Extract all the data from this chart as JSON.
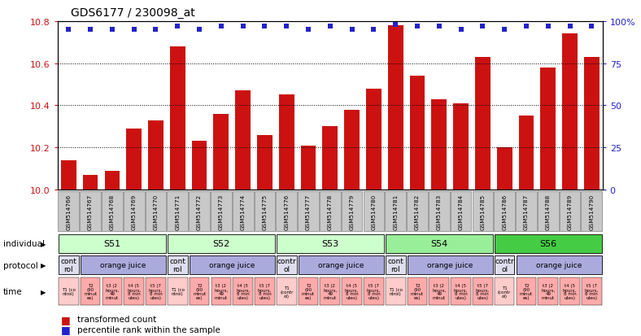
{
  "title": "GDS6177 / 230098_at",
  "samples": [
    "GSM514766",
    "GSM514767",
    "GSM514768",
    "GSM514769",
    "GSM514770",
    "GSM514771",
    "GSM514772",
    "GSM514773",
    "GSM514774",
    "GSM514775",
    "GSM514776",
    "GSM514777",
    "GSM514778",
    "GSM514779",
    "GSM514780",
    "GSM514781",
    "GSM514782",
    "GSM514783",
    "GSM514784",
    "GSM514785",
    "GSM514786",
    "GSM514787",
    "GSM514788",
    "GSM514789",
    "GSM514790"
  ],
  "bar_values": [
    10.14,
    10.07,
    10.09,
    10.29,
    10.33,
    10.68,
    10.23,
    10.36,
    10.47,
    10.26,
    10.45,
    10.21,
    10.3,
    10.38,
    10.48,
    10.78,
    10.54,
    10.43,
    10.41,
    10.63,
    10.2,
    10.35,
    10.58,
    10.74,
    10.63
  ],
  "percentile_values": [
    95,
    95,
    95,
    95,
    95,
    97,
    95,
    97,
    97,
    97,
    97,
    95,
    97,
    95,
    95,
    98,
    97,
    97,
    95,
    97,
    95,
    97,
    97,
    97,
    97
  ],
  "ymin": 10.0,
  "ymax": 10.8,
  "y2min": 0,
  "y2max": 100,
  "bar_color": "#cc1111",
  "dot_color": "#2222cc",
  "individuals": [
    {
      "label": "S51",
      "start": 0,
      "end": 5,
      "color": "#ccffcc"
    },
    {
      "label": "S52",
      "start": 5,
      "end": 10,
      "color": "#ccffcc"
    },
    {
      "label": "S53",
      "start": 10,
      "end": 15,
      "color": "#ccffcc"
    },
    {
      "label": "S54",
      "start": 15,
      "end": 20,
      "color": "#99ee99"
    },
    {
      "label": "S56",
      "start": 20,
      "end": 25,
      "color": "#44cc44"
    }
  ],
  "protocols": [
    {
      "label": "cont\nrol",
      "start": 0,
      "end": 1,
      "color": "#ddddee"
    },
    {
      "label": "orange juice",
      "start": 1,
      "end": 5,
      "color": "#aaaadd"
    },
    {
      "label": "cont\nrol",
      "start": 5,
      "end": 6,
      "color": "#ddddee"
    },
    {
      "label": "orange juice",
      "start": 6,
      "end": 10,
      "color": "#aaaadd"
    },
    {
      "label": "contr\nol",
      "start": 10,
      "end": 11,
      "color": "#ddddee"
    },
    {
      "label": "orange juice",
      "start": 11,
      "end": 15,
      "color": "#aaaadd"
    },
    {
      "label": "cont\nrol",
      "start": 15,
      "end": 16,
      "color": "#ddddee"
    },
    {
      "label": "orange juice",
      "start": 16,
      "end": 20,
      "color": "#aaaadd"
    },
    {
      "label": "contr\nol",
      "start": 20,
      "end": 21,
      "color": "#ddddee"
    },
    {
      "label": "orange juice",
      "start": 21,
      "end": 25,
      "color": "#aaaadd"
    }
  ],
  "time_labels": [
    "T1 (co\nntrol)",
    "T2\n(90\nminut\nes)",
    "t3 (2\nhours,\n49\nminut",
    "t4 (5\nhours,\n8 min\nutes)",
    "t5 (7\nhours,\n8 min\nutes)",
    "T1 (co\nntrol)",
    "T2\n(90\nminut\nes)",
    "t3 (2\nhours,\n49\nminut",
    "t4 (5\nhours,\n8 min\nutes)",
    "t5 (7\nhours,\n8 min\nutes)",
    "T1\n(contr\nol)",
    "T2\n(90\nminut\nes)",
    "t3 (2\nhours,\n49\nminut",
    "t4 (5\nhours,\n8 min\nutes)",
    "t5 (7\nhours,\n8 min\nutes)",
    "T1 (co\nntrol)",
    "T2\n(90\nminut\nes)",
    "t3 (2\nhours,\n49\nminut",
    "t4 (5\nhours,\n8 min\nutes)",
    "t5 (7\nhours,\n8 min\nutes)",
    "T1\n(contr\nol)",
    "T2\n(90\nminut\nes)",
    "t3 (2\nhours,\n49\nminut",
    "t4 (5\nhours,\n8 min\nutes)",
    "t5 (7\nhours,\n8 min\nutes)"
  ],
  "time_ctrl_indices": [
    0,
    5,
    10,
    15,
    20
  ],
  "legend_items": [
    {
      "color": "#cc1111",
      "label": "transformed count"
    },
    {
      "color": "#2222cc",
      "label": "percentile rank within the sample"
    }
  ]
}
